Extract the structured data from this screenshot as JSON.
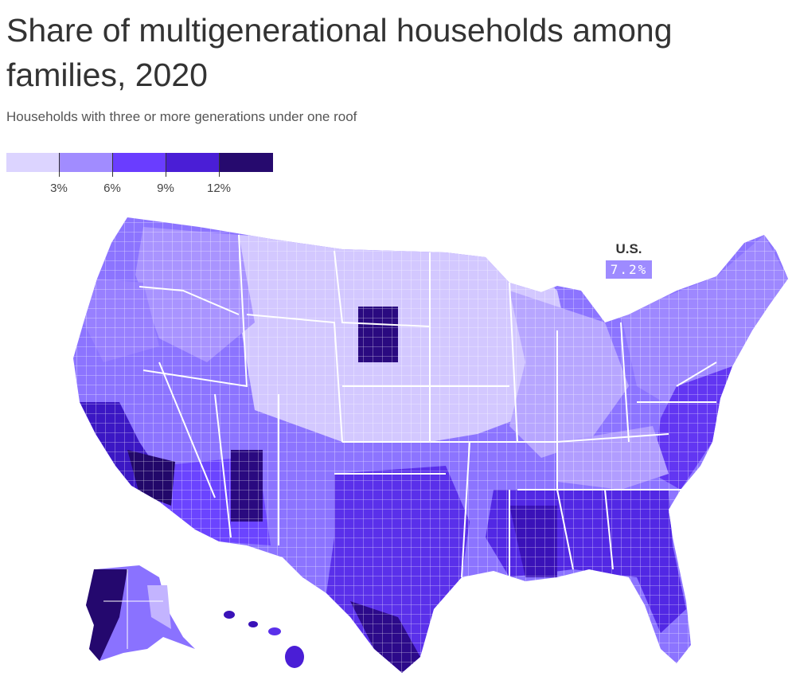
{
  "title": "Share of multigenerational households among families, 2020",
  "subtitle": "Households with three or more generations under one roof",
  "legend": {
    "colors": [
      "#dcd4ff",
      "#a18cff",
      "#6a3dff",
      "#4a1ed6",
      "#260a6e"
    ],
    "ticks": [
      "3%",
      "6%",
      "9%",
      "12%"
    ]
  },
  "callout": {
    "label": "U.S.",
    "value": "7.2%"
  }
}
